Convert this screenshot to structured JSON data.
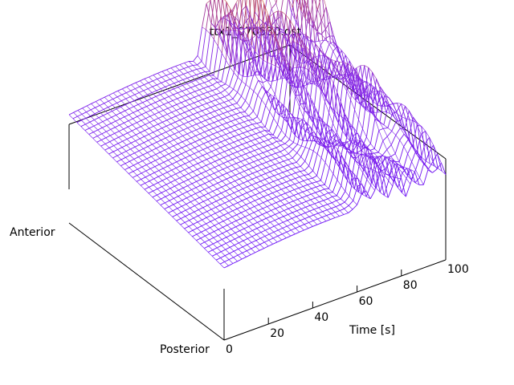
{
  "chart_data": {
    "type": "surface",
    "title": "ttx1_070530.ost",
    "xlabel": "Time [s]",
    "ylabel_far": "Anterior",
    "ylabel_near": "Posterior",
    "x_ticks": [
      "0",
      "20",
      "40",
      "60",
      "80",
      "100"
    ],
    "xlim": [
      0,
      100
    ],
    "grid": false,
    "colormap": {
      "low": "#5a00ff",
      "mid": "#8a2be2",
      "high": "#e06000"
    },
    "surface_description": {
      "n_time_samples": 51,
      "n_position_rows": 40,
      "baseline_level_range": [
        0.0,
        0.35
      ],
      "oscillation_onset_time": 55,
      "peak_times": [
        62,
        70,
        78,
        86,
        92,
        97
      ],
      "peak_amplitude": 0.9
    }
  }
}
